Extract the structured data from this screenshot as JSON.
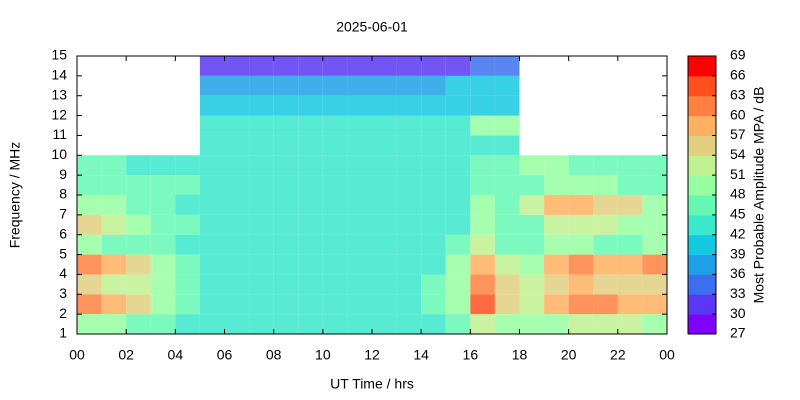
{
  "chart_data": {
    "type": "heatmap",
    "title": "2025-06-01",
    "x_label": "UT Time / hrs",
    "y_label": "Frequency / MHz",
    "colorbar_label": "Most Probable Amplitude MPA / dB",
    "xbins": [
      0,
      1,
      2,
      3,
      4,
      5,
      6,
      7,
      8,
      9,
      10,
      11,
      12,
      13,
      14,
      15,
      16,
      17,
      18,
      19,
      20,
      21,
      22,
      23,
      24
    ],
    "ybins": [
      1,
      2,
      3,
      4,
      5,
      6,
      7,
      8,
      9,
      10,
      11,
      12,
      13,
      14,
      15
    ],
    "z": [
      [
        48,
        48,
        45,
        45,
        42,
        42,
        42,
        42,
        42,
        42,
        42,
        42,
        42,
        42,
        42,
        45,
        51,
        48,
        48,
        48,
        51,
        51,
        51,
        48
      ],
      [
        60,
        57,
        54,
        48,
        45,
        42,
        42,
        42,
        42,
        42,
        42,
        42,
        42,
        42,
        45,
        48,
        63,
        54,
        51,
        57,
        60,
        60,
        57,
        57
      ],
      [
        54,
        51,
        51,
        48,
        45,
        42,
        42,
        42,
        42,
        42,
        42,
        42,
        42,
        42,
        45,
        48,
        60,
        54,
        51,
        54,
        57,
        54,
        54,
        54
      ],
      [
        60,
        57,
        54,
        48,
        45,
        42,
        42,
        42,
        42,
        42,
        42,
        42,
        42,
        42,
        42,
        48,
        57,
        51,
        48,
        57,
        60,
        57,
        57,
        60
      ],
      [
        48,
        45,
        45,
        45,
        42,
        42,
        42,
        42,
        42,
        42,
        42,
        42,
        42,
        42,
        42,
        45,
        51,
        45,
        45,
        48,
        48,
        45,
        45,
        48
      ],
      [
        54,
        51,
        48,
        45,
        45,
        42,
        42,
        42,
        42,
        42,
        42,
        42,
        42,
        42,
        42,
        42,
        48,
        45,
        45,
        51,
        51,
        51,
        48,
        48
      ],
      [
        48,
        48,
        45,
        45,
        42,
        42,
        42,
        42,
        42,
        42,
        42,
        42,
        42,
        42,
        42,
        42,
        48,
        45,
        51,
        57,
        57,
        54,
        54,
        48
      ],
      [
        45,
        45,
        45,
        45,
        45,
        42,
        42,
        42,
        42,
        42,
        42,
        42,
        42,
        42,
        42,
        42,
        45,
        45,
        45,
        48,
        48,
        48,
        45,
        45
      ],
      [
        45,
        45,
        42,
        42,
        42,
        42,
        42,
        42,
        42,
        42,
        42,
        42,
        42,
        42,
        42,
        42,
        45,
        45,
        48,
        48,
        45,
        45,
        45,
        45
      ],
      [
        null,
        null,
        null,
        null,
        null,
        42,
        42,
        42,
        42,
        42,
        42,
        42,
        42,
        42,
        42,
        42,
        42,
        42,
        null,
        null,
        null,
        null,
        null,
        null
      ],
      [
        null,
        null,
        null,
        null,
        null,
        42,
        42,
        42,
        42,
        42,
        42,
        42,
        42,
        42,
        42,
        42,
        48,
        48,
        null,
        null,
        null,
        null,
        null,
        null
      ],
      [
        null,
        null,
        null,
        null,
        null,
        39,
        39,
        39,
        39,
        39,
        39,
        39,
        39,
        39,
        39,
        39,
        39,
        39,
        null,
        null,
        null,
        null,
        null,
        null
      ],
      [
        null,
        null,
        null,
        null,
        null,
        36,
        36,
        36,
        36,
        36,
        36,
        36,
        36,
        36,
        36,
        39,
        39,
        39,
        null,
        null,
        null,
        null,
        null,
        null
      ],
      [
        null,
        null,
        null,
        null,
        null,
        30,
        30,
        30,
        30,
        30,
        30,
        30,
        30,
        30,
        30,
        30,
        33,
        33,
        null,
        null,
        null,
        null,
        null,
        null
      ]
    ],
    "xlim": [
      0,
      24
    ],
    "xticks": [
      {
        "value": 0,
        "label": "00"
      },
      {
        "value": 2,
        "label": "02"
      },
      {
        "value": 4,
        "label": "04"
      },
      {
        "value": 6,
        "label": "06"
      },
      {
        "value": 8,
        "label": "08"
      },
      10,
      12,
      14,
      16,
      18,
      20,
      22,
      {
        "value": 24,
        "label": "00"
      }
    ],
    "ylim": [
      1,
      15
    ],
    "yticks": [
      1,
      2,
      3,
      4,
      5,
      6,
      7,
      8,
      9,
      10,
      11,
      12,
      13,
      14,
      15
    ],
    "clim": [
      27,
      69
    ],
    "cticks": [
      27,
      30,
      33,
      36,
      39,
      42,
      45,
      48,
      51,
      54,
      57,
      60,
      63,
      66,
      69
    ],
    "colors": [
      "#7f00ff",
      "#5a37f5",
      "#3c6ef0",
      "#1ea0e6",
      "#14c8e0",
      "#3ae8cc",
      "#64f8b4",
      "#96ffa0",
      "#c0f090",
      "#e0d080",
      "#ffb060",
      "#ff8040",
      "#ff5020",
      "#ff0000"
    ]
  }
}
